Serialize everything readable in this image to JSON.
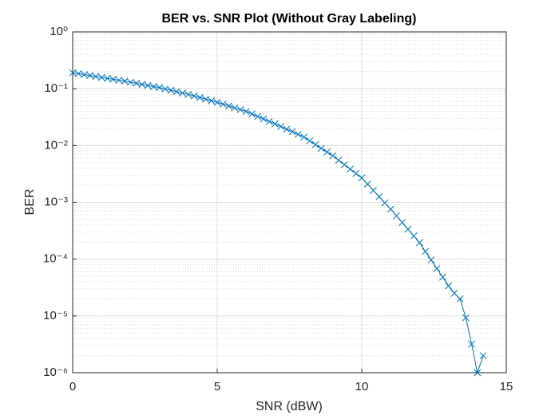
{
  "chart_data": {
    "type": "line",
    "title": "BER vs. SNR Plot (Without Gray Labeling)",
    "x_label": "SNR (dBW)",
    "y_label": "BER",
    "x": [
      0,
      0.2,
      0.4,
      0.6,
      0.8,
      1,
      1.2,
      1.4,
      1.6,
      1.8,
      2,
      2.2,
      2.4,
      2.6,
      2.8,
      3,
      3.2,
      3.4,
      3.6,
      3.8,
      4,
      4.2,
      4.4,
      4.6,
      4.8,
      5,
      5.2,
      5.4,
      5.6,
      5.8,
      6,
      6.2,
      6.4,
      6.6,
      6.8,
      7,
      7.2,
      7.4,
      7.6,
      7.8,
      8,
      8.2,
      8.4,
      8.6,
      8.8,
      9,
      9.2,
      9.4,
      9.6,
      9.8,
      10,
      10.2,
      10.4,
      10.6,
      10.8,
      11,
      11.2,
      11.4,
      11.6,
      11.8,
      12,
      12.2,
      12.4,
      12.6,
      12.8,
      13,
      13.2,
      13.4,
      13.6,
      13.8,
      14,
      14.2
    ],
    "values": [
      0.191,
      0.184,
      0.177,
      0.171,
      0.164,
      0.158,
      0.152,
      0.147,
      0.141,
      0.136,
      0.13,
      0.125,
      0.119,
      0.114,
      0.109,
      0.105,
      0.0991,
      0.0938,
      0.0887,
      0.0839,
      0.0794,
      0.0745,
      0.0698,
      0.0655,
      0.0614,
      0.0575,
      0.0535,
      0.0497,
      0.0461,
      0.0429,
      0.0398,
      0.036,
      0.0325,
      0.0294,
      0.0265,
      0.024,
      0.0216,
      0.0194,
      0.0175,
      0.0157,
      0.0141,
      0.0121,
      0.0104,
      0.00895,
      0.00769,
      0.00661,
      0.00552,
      0.00461,
      0.00385,
      0.00322,
      0.00269,
      0.00209,
      0.00162,
      0.00126,
      0.000977,
      0.000759,
      0.000578,
      0.000441,
      0.000336,
      0.000256,
      0.000195,
      0.000137,
      9.68e-05,
      6.82e-05,
      4.81e-05,
      3.39e-05,
      2.5e-05,
      2e-05,
      9.3e-06,
      3.2e-06,
      1e-06,
      2e-06
    ],
    "color": "#0072bd",
    "marker": "x",
    "xlim": [
      0,
      15
    ],
    "xticks": [
      0,
      5,
      10,
      15
    ],
    "ylim": [
      1e-06,
      1
    ],
    "y_scale": "log",
    "yticks": [
      {
        "value": 1e-06,
        "label": "10⁻⁶"
      },
      {
        "value": 1e-05,
        "label": "10⁻⁵"
      },
      {
        "value": 0.0001,
        "label": "10⁻⁴"
      },
      {
        "value": 0.001,
        "label": "10⁻³"
      },
      {
        "value": 0.01,
        "label": "10⁻²"
      },
      {
        "value": 0.1,
        "label": "10⁻¹"
      },
      {
        "value": 1,
        "label": "10⁰"
      }
    ],
    "grid": true,
    "minor_grid": true
  }
}
